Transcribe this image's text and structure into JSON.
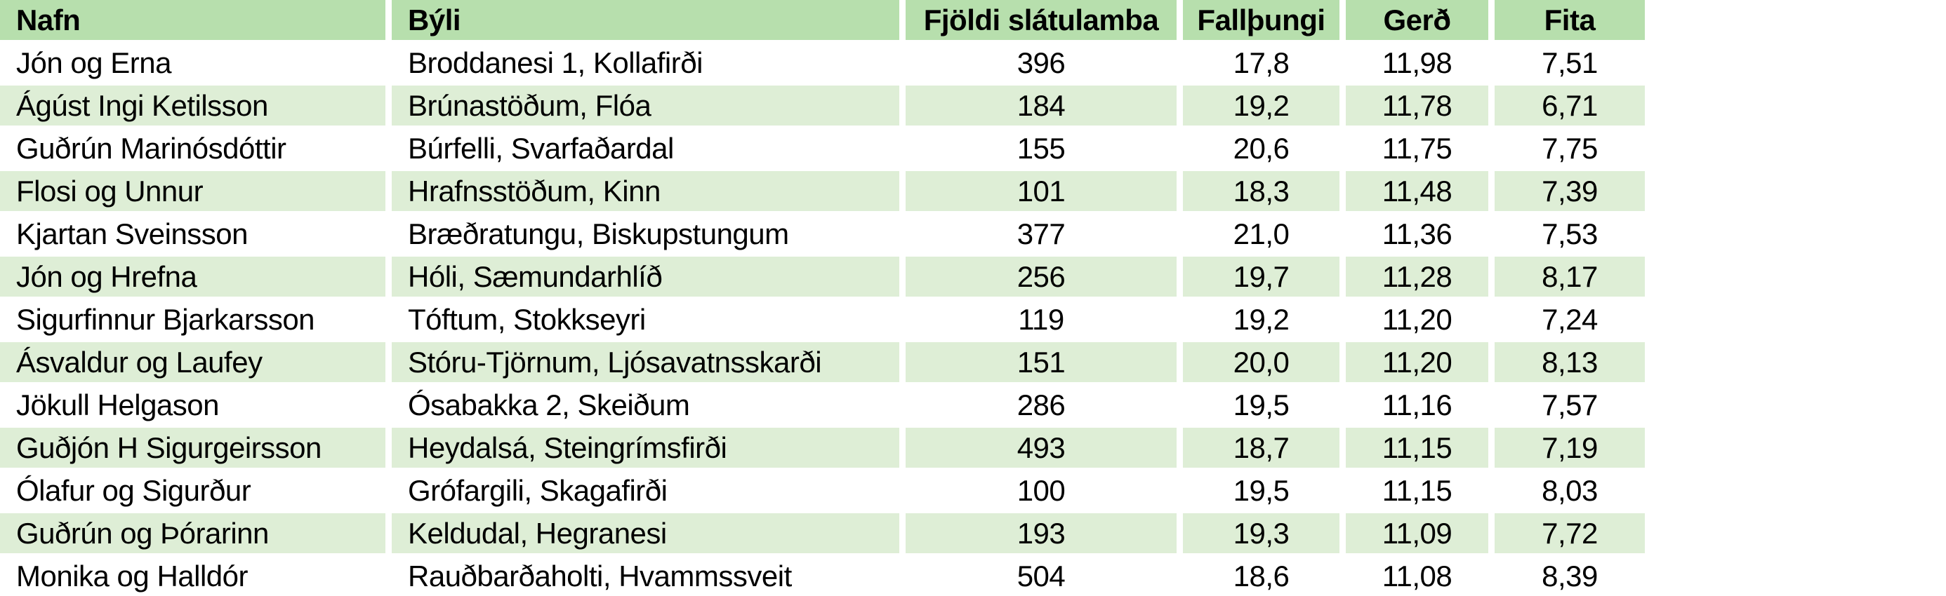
{
  "colors": {
    "header_bg": "#b7dfad",
    "band_row_bg": "#deeed6",
    "plain_row_bg": "#ffffff",
    "text": "#000000"
  },
  "table": {
    "columns": [
      {
        "id": "nafn",
        "label": "Nafn"
      },
      {
        "id": "byli",
        "label": "Býli"
      },
      {
        "id": "fjoldi_slatulamba",
        "label": "Fjöldi slátulamba"
      },
      {
        "id": "fallthungi",
        "label": "Fallþungi"
      },
      {
        "id": "gerd",
        "label": "Gerð"
      },
      {
        "id": "fita",
        "label": "Fita"
      }
    ],
    "rows": [
      {
        "name": "Jón og Erna",
        "farm": "Broddanesi 1, Kollafirði",
        "lamb_count": "396",
        "carcass_weight": "17,8",
        "conformation": "11,98",
        "fat": "7,51"
      },
      {
        "name": "Ágúst Ingi Ketilsson",
        "farm": "Brúnastöðum, Flóa",
        "lamb_count": "184",
        "carcass_weight": "19,2",
        "conformation": "11,78",
        "fat": "6,71"
      },
      {
        "name": "Guðrún Marinósdóttir",
        "farm": "Búrfelli, Svarfaðardal",
        "lamb_count": "155",
        "carcass_weight": "20,6",
        "conformation": "11,75",
        "fat": "7,75"
      },
      {
        "name": "Flosi og Unnur",
        "farm": "Hrafnsstöðum, Kinn",
        "lamb_count": "101",
        "carcass_weight": "18,3",
        "conformation": "11,48",
        "fat": "7,39"
      },
      {
        "name": "Kjartan Sveinsson",
        "farm": "Bræðratungu, Biskupstungum",
        "lamb_count": "377",
        "carcass_weight": "21,0",
        "conformation": "11,36",
        "fat": "7,53"
      },
      {
        "name": "Jón og Hrefna",
        "farm": "Hóli, Sæmundarhlíð",
        "lamb_count": "256",
        "carcass_weight": "19,7",
        "conformation": "11,28",
        "fat": "8,17"
      },
      {
        "name": "Sigurfinnur Bjarkarsson",
        "farm": "Tóftum, Stokkseyri",
        "lamb_count": "119",
        "carcass_weight": "19,2",
        "conformation": "11,20",
        "fat": "7,24"
      },
      {
        "name": "Ásvaldur og Laufey",
        "farm": "Stóru-Tjörnum, Ljósavatnsskarði",
        "lamb_count": "151",
        "carcass_weight": "20,0",
        "conformation": "11,20",
        "fat": "8,13"
      },
      {
        "name": "Jökull Helgason",
        "farm": "Ósabakka 2, Skeiðum",
        "lamb_count": "286",
        "carcass_weight": "19,5",
        "conformation": "11,16",
        "fat": "7,57"
      },
      {
        "name": "Guðjón H Sigurgeirsson",
        "farm": "Heydalsá, Steingrímsfirði",
        "lamb_count": "493",
        "carcass_weight": "18,7",
        "conformation": "11,15",
        "fat": "7,19"
      },
      {
        "name": "Ólafur og Sigurður",
        "farm": "Grófargili, Skagafirði",
        "lamb_count": "100",
        "carcass_weight": "19,5",
        "conformation": "11,15",
        "fat": "8,03"
      },
      {
        "name": "Guðrún og Þórarinn",
        "farm": "Keldudal, Hegranesi",
        "lamb_count": "193",
        "carcass_weight": "19,3",
        "conformation": "11,09",
        "fat": "7,72"
      },
      {
        "name": "Monika og Halldór",
        "farm": "Rauðbarðaholti, Hvammssveit",
        "lamb_count": "504",
        "carcass_weight": "18,6",
        "conformation": "11,08",
        "fat": "8,39"
      }
    ]
  }
}
